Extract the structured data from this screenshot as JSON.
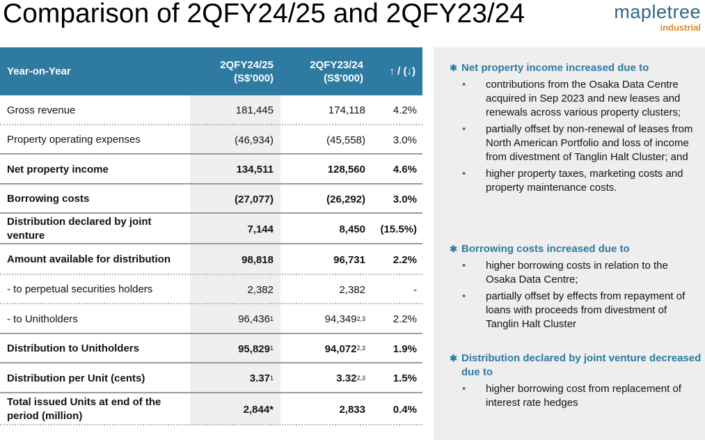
{
  "title": "Comparison of 2QFY24/25 and 2QFY23/24",
  "logo": {
    "word": "mapletree",
    "sub": "industrial"
  },
  "table": {
    "headers": [
      "Year-on-Year",
      "2QFY24/25\n(S$'000)",
      "2QFY23/24\n(S$'000)",
      "↑ / (↓)"
    ],
    "rows": [
      {
        "label": "Gross revenue",
        "v1": "181,445",
        "v1_sup": "",
        "v2": "174,118",
        "v2_sup": "",
        "chg": "4.2%",
        "bold": false
      },
      {
        "label": "Property operating expenses",
        "v1": "(46,934)",
        "v1_sup": "",
        "v2": "(45,558)",
        "v2_sup": "",
        "chg": "3.0%",
        "bold": false
      },
      {
        "label": "Net property income",
        "v1": "134,511",
        "v1_sup": "",
        "v2": "128,560",
        "v2_sup": "",
        "chg": "4.6%",
        "bold": true
      },
      {
        "label": "Borrowing costs",
        "v1": "(27,077)",
        "v1_sup": "",
        "v2": "(26,292)",
        "v2_sup": "",
        "chg": "3.0%",
        "bold": true
      },
      {
        "label": "Distribution declared by joint venture",
        "v1": "7,144",
        "v1_sup": "",
        "v2": "8,450",
        "v2_sup": "",
        "chg": "(15.5%)",
        "bold": true
      },
      {
        "label": "Amount available for distribution",
        "v1": "98,818",
        "v1_sup": "",
        "v2": "96,731",
        "v2_sup": "",
        "chg": "2.2%",
        "bold": true
      },
      {
        "label": "- to perpetual securities holders",
        "v1": "2,382",
        "v1_sup": "",
        "v2": "2,382",
        "v2_sup": "",
        "chg": "-",
        "bold": false
      },
      {
        "label": "- to Unitholders",
        "v1": "96,436",
        "v1_sup": "1",
        "v2": "94,349",
        "v2_sup": "2,3",
        "chg": "2.2%",
        "bold": false
      },
      {
        "label": "Distribution to Unitholders",
        "v1": "95,829",
        "v1_sup": "1",
        "v2": "94,072",
        "v2_sup": "2,3",
        "chg": "1.9%",
        "bold": true
      },
      {
        "label": "Distribution per Unit (cents)",
        "v1": "3.37",
        "v1_sup": "1",
        "v2": "3.32",
        "v2_sup": "2,3",
        "chg": "1.5%",
        "bold": true
      },
      {
        "label": "Total issued Units at end of the period (million)",
        "v1": "2,844*",
        "v1_sup": "",
        "v2": "2,833",
        "v2_sup": "",
        "chg": "0.4%",
        "bold": true
      }
    ]
  },
  "panel": {
    "sections": [
      {
        "heading": "Net property income increased due to",
        "bullets": [
          "contributions from the Osaka Data Centre acquired in Sep 2023 and new leases and renewals across various property clusters;",
          "partially offset by non-renewal of leases from North American Portfolio and loss of income from divestment of Tanglin Halt Cluster; and",
          "higher property taxes, marketing costs and property maintenance costs."
        ]
      },
      {
        "heading": "Borrowing costs increased due to",
        "bullets": [
          "higher borrowing costs in relation to the Osaka Data Centre;",
          "partially offset by effects from repayment of loans with proceeds from divestment of Tanglin Halt Cluster"
        ]
      },
      {
        "heading": "Distribution declared by joint venture decreased due to",
        "bullets": [
          "higher borrowing cost from replacement of interest rate hedges"
        ]
      }
    ]
  },
  "colors": {
    "header_bg": "#2f7aa1",
    "accent_orange": "#d98a2f",
    "panel_bg": "#eeeeee"
  }
}
